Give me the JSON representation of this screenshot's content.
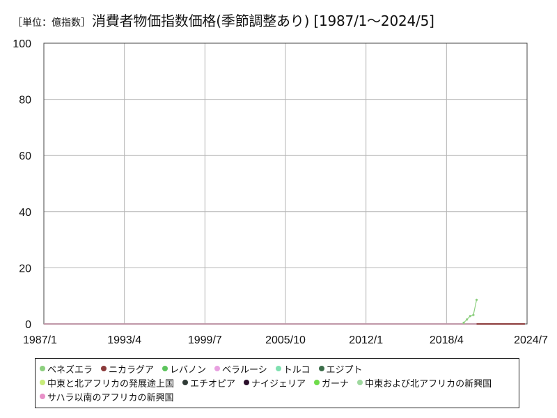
{
  "header": {
    "unit_label": "［単位：億指数］",
    "title": "消費者物価指数価格(季節調整あり) [1987/1～2024/5]"
  },
  "chart_data": {
    "type": "line",
    "title": "消費者物価指数価格(季節調整あり) [1987/1～2024/5]",
    "unit": "［単位：億指数］",
    "xlabel": "",
    "ylabel": "",
    "x_tick_labels": [
      "1987/1",
      "1993/4",
      "1999/7",
      "2005/10",
      "2012/1",
      "2018/4",
      "2024/7"
    ],
    "y_ticks": [
      0,
      20,
      40,
      60,
      80,
      100
    ],
    "xlim": [
      "1987/1",
      "2024/7"
    ],
    "ylim": [
      0,
      100
    ],
    "grid": true,
    "legend_position": "bottom",
    "series": [
      {
        "name": "ベネズエラ",
        "color": "#8ccf7e",
        "points": [
          [
            "2019/8",
            0.4
          ],
          [
            "2019/11",
            1.6
          ],
          [
            "2020/2",
            2.8
          ],
          [
            "2020/5",
            3.2
          ],
          [
            "2020/8",
            8.6
          ]
        ]
      },
      {
        "name": "ニカラグア",
        "color": "#8b3a3a",
        "points": [
          [
            "2020/8",
            0.0
          ],
          [
            "2024/5",
            0.0
          ]
        ]
      },
      {
        "name": "レバノン",
        "color": "#5cc45c",
        "points": [
          [
            "1987/1",
            0.0
          ],
          [
            "2024/5",
            0.0
          ]
        ]
      },
      {
        "name": "ベラルーシ",
        "color": "#e8a0e0",
        "points": [
          [
            "1987/1",
            0.0
          ],
          [
            "2024/5",
            0.0
          ]
        ]
      },
      {
        "name": "トルコ",
        "color": "#7fe0b0",
        "points": [
          [
            "1987/1",
            0.0
          ],
          [
            "2024/5",
            0.0
          ]
        ]
      },
      {
        "name": "エジプト",
        "color": "#3c6e4a",
        "points": [
          [
            "1987/1",
            0.0
          ],
          [
            "2024/5",
            0.0
          ]
        ]
      },
      {
        "name": "中東と北アフリカの発展途上国",
        "color": "#c8ec7a",
        "points": [
          [
            "1987/1",
            0.0
          ],
          [
            "2024/5",
            0.0
          ]
        ]
      },
      {
        "name": "エチオピア",
        "color": "#2f3b36",
        "points": [
          [
            "1987/1",
            0.0
          ],
          [
            "2024/5",
            0.0
          ]
        ]
      },
      {
        "name": "ナイジェリア",
        "color": "#2b0f2b",
        "points": [
          [
            "1987/1",
            0.0
          ],
          [
            "2024/5",
            0.0
          ]
        ]
      },
      {
        "name": "ガーナ",
        "color": "#6fdc4a",
        "points": [
          [
            "1987/1",
            0.0
          ],
          [
            "2024/5",
            0.0
          ]
        ]
      },
      {
        "name": "中東および北アフリカの新興国",
        "color": "#9ed89e",
        "points": [
          [
            "1987/1",
            0.0
          ],
          [
            "2024/5",
            0.0
          ]
        ]
      },
      {
        "name": "サハラ以南のアフリカの新興国",
        "color": "#e890c8",
        "points": [
          [
            "1987/1",
            0.0
          ],
          [
            "2024/5",
            0.0
          ]
        ]
      }
    ]
  }
}
